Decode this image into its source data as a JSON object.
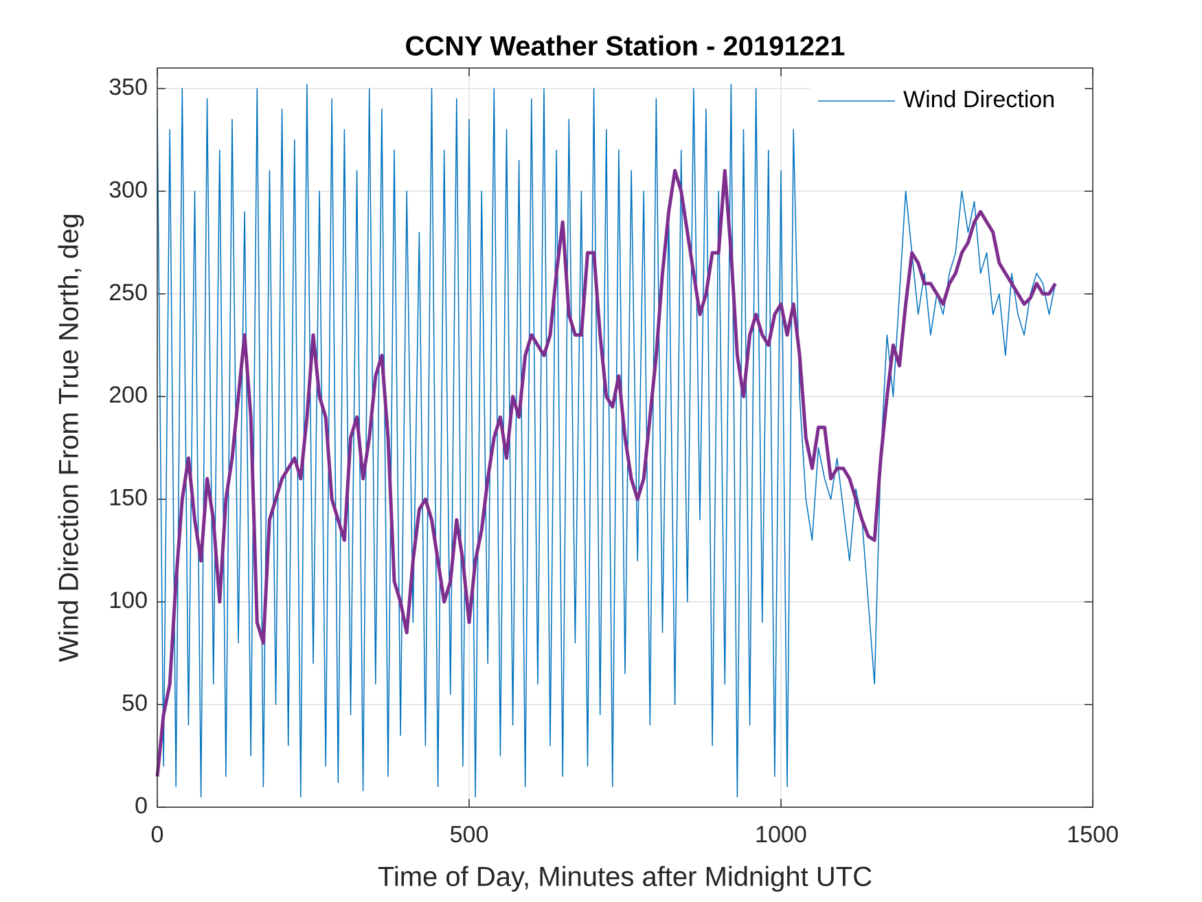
{
  "chart_data": {
    "type": "line",
    "title": "CCNY Weather Station - 20191221",
    "xlabel": "Time of Day, Minutes after Midnight UTC",
    "ylabel": "Wind Direction From True North, deg",
    "x": [
      0,
      10,
      20,
      30,
      40,
      50,
      60,
      70,
      80,
      90,
      100,
      110,
      120,
      130,
      140,
      150,
      160,
      170,
      180,
      190,
      200,
      210,
      220,
      230,
      240,
      250,
      260,
      270,
      280,
      290,
      300,
      310,
      320,
      330,
      340,
      350,
      360,
      370,
      380,
      390,
      400,
      410,
      420,
      430,
      440,
      450,
      460,
      470,
      480,
      490,
      500,
      510,
      520,
      530,
      540,
      550,
      560,
      570,
      580,
      590,
      600,
      610,
      620,
      630,
      640,
      650,
      660,
      670,
      680,
      690,
      700,
      710,
      720,
      730,
      740,
      750,
      760,
      770,
      780,
      790,
      800,
      810,
      820,
      830,
      840,
      850,
      860,
      870,
      880,
      890,
      900,
      910,
      920,
      930,
      940,
      950,
      960,
      970,
      980,
      990,
      1000,
      1010,
      1020,
      1030,
      1040,
      1050,
      1060,
      1070,
      1080,
      1090,
      1100,
      1110,
      1120,
      1130,
      1140,
      1150,
      1160,
      1170,
      1180,
      1190,
      1200,
      1210,
      1220,
      1230,
      1240,
      1250,
      1260,
      1270,
      1280,
      1290,
      1300,
      1310,
      1320,
      1330,
      1340,
      1350,
      1360,
      1370,
      1380,
      1390,
      1400,
      1410,
      1420,
      1430,
      1440
    ],
    "series": [
      {
        "name": "Wind Direction",
        "color": "#0072bd",
        "width": 1.5,
        "values": [
          340,
          20,
          330,
          10,
          350,
          40,
          300,
          5,
          345,
          60,
          320,
          15,
          335,
          80,
          290,
          25,
          350,
          10,
          310,
          50,
          340,
          30,
          325,
          5,
          352,
          70,
          300,
          20,
          345,
          12,
          330,
          45,
          310,
          8,
          350,
          60,
          340,
          15,
          320,
          35,
          300,
          90,
          280,
          30,
          350,
          10,
          320,
          55,
          345,
          20,
          335,
          5,
          300,
          70,
          350,
          25,
          330,
          40,
          315,
          10,
          345,
          60,
          350,
          30,
          320,
          15,
          335,
          80,
          300,
          20,
          350,
          45,
          330,
          10,
          320,
          65,
          310,
          120,
          300,
          40,
          345,
          85,
          290,
          50,
          320,
          100,
          350,
          140,
          340,
          30,
          300,
          60,
          352,
          5,
          330,
          40,
          350,
          90,
          320,
          15,
          310,
          10,
          330,
          200,
          150,
          130,
          175,
          160,
          150,
          170,
          145,
          120,
          155,
          140,
          100,
          60,
          170,
          230,
          200,
          250,
          300,
          270,
          240,
          260,
          230,
          250,
          240,
          260,
          270,
          300,
          280,
          295,
          260,
          270,
          240,
          250,
          220,
          260,
          240,
          230,
          250,
          260,
          255,
          240,
          255
        ]
      },
      {
        "color": "#7e2f8e",
        "width": 5,
        "values": [
          15,
          45,
          60,
          110,
          150,
          170,
          140,
          120,
          160,
          140,
          100,
          150,
          170,
          200,
          230,
          190,
          90,
          80,
          140,
          150,
          160,
          165,
          170,
          160,
          190,
          230,
          200,
          190,
          150,
          140,
          130,
          180,
          190,
          160,
          180,
          210,
          220,
          180,
          110,
          100,
          85,
          120,
          145,
          150,
          140,
          120,
          100,
          110,
          140,
          120,
          90,
          120,
          135,
          160,
          180,
          190,
          170,
          200,
          190,
          220,
          230,
          225,
          220,
          230,
          260,
          285,
          240,
          230,
          230,
          270,
          270,
          230,
          200,
          195,
          210,
          180,
          160,
          150,
          160,
          190,
          220,
          260,
          290,
          310,
          300,
          280,
          260,
          240,
          250,
          270,
          270,
          310,
          270,
          220,
          200,
          230,
          240,
          230,
          225,
          240,
          245,
          230,
          245,
          220,
          180,
          165,
          185,
          185,
          160,
          165,
          165,
          160,
          150,
          140,
          132,
          130,
          170,
          200,
          225,
          215,
          245,
          270,
          265,
          255,
          255,
          250,
          245,
          255,
          260,
          270,
          275,
          285,
          290,
          285,
          280,
          265,
          260,
          255,
          250,
          245,
          248,
          255,
          250,
          250,
          255
        ]
      }
    ],
    "xlim": [
      0,
      1500
    ],
    "xticks": [
      0,
      500,
      1000,
      1500
    ],
    "ylim": [
      0,
      360
    ],
    "yticks": [
      0,
      50,
      100,
      150,
      200,
      250,
      300,
      350
    ],
    "grid": true,
    "legend": "northeast"
  }
}
